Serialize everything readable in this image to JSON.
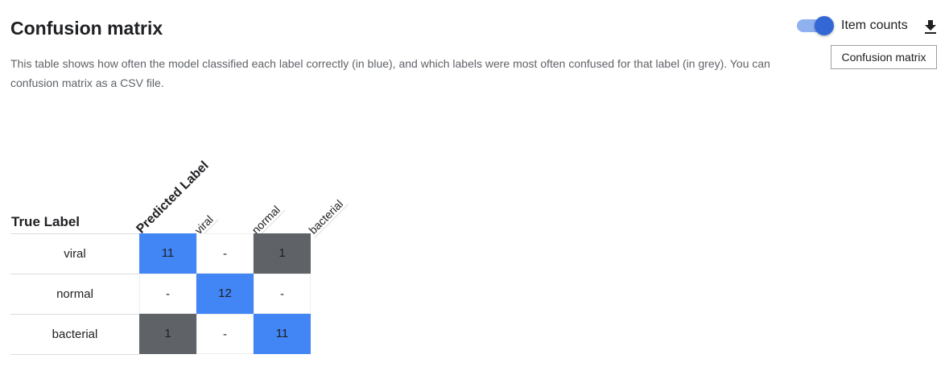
{
  "header": {
    "title": "Confusion matrix",
    "description": "This table shows how often the model classified each label correctly (in blue), and which labels were most often confused for that label (in grey). You can",
    "description_line2": "confusion matrix as a CSV file."
  },
  "toolbar": {
    "toggle_label": "Item counts",
    "toggle_on": true,
    "download_icon": "download-icon",
    "tooltip": "Confusion matrix"
  },
  "matrix": {
    "true_label_header": "True Label",
    "predicted_label_header": "Predicted Label",
    "columns": [
      "viral",
      "normal",
      "bacterial"
    ],
    "rows": [
      {
        "label": "viral",
        "cells": [
          "11",
          "-",
          "1"
        ]
      },
      {
        "label": "normal",
        "cells": [
          "-",
          "12",
          "-"
        ]
      },
      {
        "label": "bacterial",
        "cells": [
          "1",
          "-",
          "11"
        ]
      }
    ]
  },
  "colors": {
    "correct": "#4285f4",
    "confused": "#5f6368",
    "accent": "#3367d6"
  }
}
